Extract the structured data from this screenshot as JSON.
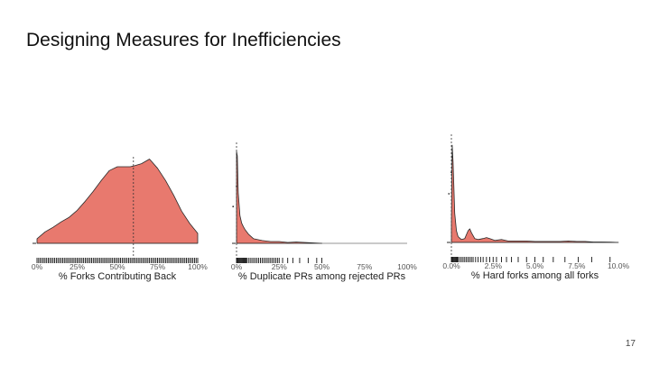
{
  "slide": {
    "title": "Designing Measures for Inefficiencies",
    "page_number": "17"
  },
  "colors": {
    "fill": "#E8796E",
    "outline": "#2a2a2a",
    "tick": "#555555",
    "axis_text": "#555555",
    "rug": "#111111"
  },
  "chart_data": [
    {
      "type": "area",
      "kind": "density with rug plot",
      "xlabel": "% Forks Contributing Back",
      "ylabel": "",
      "xlim": [
        0,
        100
      ],
      "tick_values": [
        0,
        25,
        50,
        75,
        100
      ],
      "tick_labels": [
        "0%",
        "25%",
        "50%",
        "75%",
        "100%"
      ],
      "x": [
        0,
        5,
        10,
        15,
        20,
        25,
        30,
        35,
        40,
        45,
        50,
        55,
        58,
        60,
        65,
        70,
        75,
        80,
        85,
        90,
        95,
        100
      ],
      "density": [
        0.06,
        0.15,
        0.21,
        0.28,
        0.34,
        0.43,
        0.55,
        0.68,
        0.82,
        0.95,
        1.0,
        1.0,
        1.0,
        1.01,
        1.04,
        1.1,
        0.98,
        0.82,
        0.63,
        0.42,
        0.26,
        0.13
      ],
      "reference_line": 60,
      "rug": [
        0,
        1,
        2,
        3,
        4,
        5,
        6,
        7,
        8,
        9,
        10,
        11,
        12,
        13,
        14,
        15,
        16,
        17,
        18,
        19,
        20,
        21,
        22,
        23,
        24,
        25,
        26,
        27,
        28,
        29,
        30,
        31,
        32,
        33,
        34,
        35,
        36,
        37,
        38,
        39,
        40,
        41,
        42,
        43,
        44,
        45,
        46,
        47,
        48,
        49,
        50,
        51,
        52,
        53,
        54,
        55,
        56,
        57,
        58,
        59,
        60,
        61,
        62,
        63,
        64,
        65,
        66,
        67,
        68,
        69,
        70,
        71,
        72,
        73,
        74,
        75,
        76,
        77,
        78,
        79,
        80,
        81,
        82,
        83,
        84,
        85,
        86,
        87,
        88,
        89,
        90,
        91,
        92,
        93,
        94,
        95,
        96,
        97,
        98,
        99,
        100
      ],
      "grid": false,
      "legend": false
    },
    {
      "type": "area",
      "kind": "density with rug plot",
      "xlabel": "% Duplicate PRs among rejected PRs",
      "ylabel": "",
      "xlim": [
        0,
        100
      ],
      "tick_values": [
        0,
        25,
        50,
        75,
        100
      ],
      "tick_labels": [
        "0%",
        "25%",
        "50%",
        "75%",
        "100%"
      ],
      "x": [
        0,
        0.5,
        1,
        2,
        3,
        4,
        5,
        7,
        10,
        15,
        20,
        25,
        30,
        35,
        40,
        45,
        50
      ],
      "density": [
        1.0,
        0.95,
        0.55,
        0.3,
        0.22,
        0.18,
        0.15,
        0.1,
        0.05,
        0.03,
        0.02,
        0.02,
        0.01,
        0.015,
        0.01,
        0.005,
        0.0
      ],
      "reference_line": 0,
      "rug": [
        0,
        0.5,
        1,
        1.5,
        2,
        2.5,
        3,
        3.5,
        4,
        4.5,
        5,
        5.5,
        6,
        7,
        8,
        9,
        10,
        11,
        12,
        13,
        14,
        15,
        16,
        17,
        18,
        19,
        20,
        21,
        22,
        23,
        24,
        25,
        27,
        30,
        33,
        37,
        42,
        47,
        50
      ],
      "outlier_points": [
        [
          0,
          0.62
        ],
        [
          -2,
          0.4
        ]
      ],
      "grid": false,
      "legend": false
    },
    {
      "type": "area",
      "kind": "density with rug plot",
      "xlabel": "% Hard forks among all forks",
      "ylabel": "",
      "xlim": [
        0,
        10
      ],
      "tick_values": [
        0,
        2.5,
        5,
        7.5,
        10
      ],
      "tick_labels": [
        "0.0%",
        "2.5%",
        "5.0%",
        "7.5%",
        "10.0%"
      ],
      "x": [
        0,
        0.05,
        0.1,
        0.2,
        0.3,
        0.4,
        0.6,
        0.8,
        1.0,
        1.1,
        1.2,
        1.4,
        1.6,
        1.9,
        2.1,
        2.3,
        2.6,
        3.0,
        3.4,
        4.0,
        4.5,
        5.0,
        5.5,
        6.0,
        6.5,
        7.0,
        7.5,
        8.0,
        8.5,
        9.0,
        9.5,
        10.0
      ],
      "density": [
        0.2,
        1.0,
        0.82,
        0.3,
        0.12,
        0.06,
        0.03,
        0.04,
        0.12,
        0.14,
        0.1,
        0.04,
        0.03,
        0.04,
        0.05,
        0.04,
        0.02,
        0.03,
        0.015,
        0.015,
        0.015,
        0.01,
        0.01,
        0.01,
        0.01,
        0.015,
        0.01,
        0.01,
        0.005,
        0.005,
        0.003,
        0.0
      ],
      "reference_line": 0,
      "rug": [
        0,
        0.05,
        0.1,
        0.15,
        0.2,
        0.25,
        0.3,
        0.35,
        0.4,
        0.5,
        0.6,
        0.7,
        0.8,
        0.9,
        1.0,
        1.1,
        1.2,
        1.3,
        1.45,
        1.6,
        1.75,
        1.9,
        2.1,
        2.3,
        2.5,
        2.7,
        3.0,
        3.3,
        3.6,
        4.0,
        4.5,
        5.0,
        5.5,
        6.1,
        6.8,
        7.6,
        8.4,
        9.5
      ],
      "outlier_points": [
        [
          0,
          0.72
        ],
        [
          -0.15,
          0.5
        ]
      ],
      "grid": false,
      "legend": false
    }
  ]
}
